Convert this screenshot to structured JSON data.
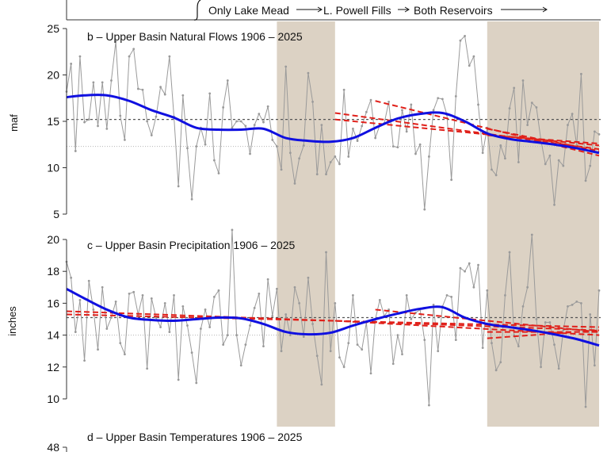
{
  "colors": {
    "shade": "#dcd2c4",
    "obs": "#9a9a9a",
    "smooth": "#1010e0",
    "trend": "#e0201a",
    "mean_line": "#555555",
    "ref_line": "#b5b5b5"
  },
  "header": {
    "labels": [
      "Only Lake Mead",
      "L. Powell Fills",
      "Both Reservoirs"
    ]
  },
  "chart_data": [
    {
      "id": "flows",
      "type": "line",
      "title": "b – Upper Basin Natural Flows 1906 – 2025",
      "ylabel": "maf",
      "xlim": [
        1906,
        2025
      ],
      "ylim": [
        5,
        25
      ],
      "yticks": [
        5,
        10,
        15,
        20,
        25
      ],
      "shaded_periods": [
        [
          1953,
          1966
        ],
        [
          2000,
          2025
        ]
      ],
      "mean_line": 15.2,
      "ref_line": 12.3,
      "series": [
        {
          "kind": "observed",
          "x_start": 1906,
          "values": [
            18.2,
            21.2,
            11.8,
            22.0,
            14.9,
            15.2,
            19.2,
            14.5,
            19.2,
            14.2,
            19.4,
            23.6,
            15.6,
            13.0,
            22.0,
            22.8,
            18.5,
            18.4,
            15.0,
            13.5,
            15.5,
            18.7,
            17.9,
            22.0,
            15.5,
            8.0,
            17.8,
            12.1,
            6.6,
            12.3,
            14.3,
            12.5,
            18.0,
            10.8,
            9.4,
            16.5,
            19.4,
            14.3,
            15.0,
            15.0,
            14.5,
            11.5,
            14.6,
            15.8,
            14.9,
            16.6,
            13.0,
            12.3,
            9.8,
            20.9,
            11.6,
            8.3,
            11.0,
            12.4,
            20.2,
            17.1,
            9.3,
            14.6,
            9.3,
            10.6,
            11.2,
            10.4,
            18.4,
            11.2,
            14.2,
            12.9,
            14.5,
            16.0,
            17.3,
            13.2,
            14.6,
            14.8,
            17.1,
            12.3,
            12.2,
            16.2,
            13.9,
            16.8,
            11.5,
            12.5,
            5.5,
            11.2,
            16.2,
            17.5,
            17.4,
            15.7,
            8.7,
            17.7,
            23.7,
            24.2,
            21.0,
            22.0,
            16.8,
            11.6,
            14.3,
            9.8,
            9.2,
            12.4,
            11.0,
            16.4,
            18.6,
            10.6,
            19.4,
            14.6,
            17.0,
            16.5,
            13.0,
            10.4,
            11.3,
            6.0,
            10.8,
            10.2,
            14.6,
            15.8,
            12.4,
            20.1,
            8.6,
            10.2,
            13.9,
            13.6
          ]
        },
        {
          "kind": "smooth",
          "x": [
            1906,
            1910,
            1915,
            1920,
            1925,
            1930,
            1935,
            1940,
            1945,
            1950,
            1955,
            1960,
            1965,
            1970,
            1975,
            1980,
            1985,
            1990,
            1995,
            2000,
            2005,
            2010,
            2015,
            2020,
            2025
          ],
          "values": [
            17.6,
            17.8,
            17.8,
            17.2,
            16.2,
            15.4,
            14.3,
            14.1,
            14.1,
            14.2,
            13.2,
            12.9,
            12.8,
            13.2,
            14.3,
            15.3,
            15.8,
            15.9,
            15.0,
            13.7,
            13.1,
            12.8,
            12.5,
            12.1,
            11.6
          ]
        },
        {
          "kind": "trend",
          "segments": [
            [
              [
                1966,
                15.9
              ],
              [
                2025,
                12.0
              ]
            ],
            [
              [
                1966,
                15.2
              ],
              [
                2025,
                12.4
              ]
            ],
            [
              [
                1975,
                17.2
              ],
              [
                2025,
                11.3
              ]
            ],
            [
              [
                2000,
                13.5
              ],
              [
                2025,
                12.6
              ]
            ],
            [
              [
                2000,
                14.2
              ],
              [
                2025,
                11.8
              ]
            ]
          ]
        }
      ]
    },
    {
      "id": "precip",
      "type": "line",
      "title": "c – Upper Basin Precipitation 1906 – 2025",
      "ylabel": "inches",
      "xlim": [
        1906,
        2025
      ],
      "ylim": [
        10,
        20
      ],
      "yticks": [
        10,
        12,
        14,
        16,
        18,
        20
      ],
      "shaded_periods": [
        [
          1953,
          1966
        ],
        [
          2000,
          2025
        ]
      ],
      "mean_line": 15.1,
      "ref_line": 14.0,
      "series": [
        {
          "kind": "observed",
          "x_start": 1906,
          "values": [
            18.6,
            17.6,
            14.2,
            16.2,
            12.4,
            17.4,
            15.6,
            13.1,
            17.0,
            14.4,
            15.1,
            16.1,
            13.5,
            12.8,
            16.6,
            16.7,
            15.3,
            16.5,
            11.9,
            16.3,
            15.1,
            14.5,
            16.0,
            14.2,
            16.5,
            11.2,
            15.8,
            14.6,
            12.9,
            11.0,
            14.4,
            15.6,
            14.5,
            16.4,
            16.8,
            13.4,
            14.0,
            20.6,
            14.0,
            12.1,
            13.4,
            14.6,
            15.7,
            16.6,
            13.3,
            17.5,
            15.2,
            16.9,
            13.0,
            15.3,
            14.0,
            17.0,
            16.0,
            13.9,
            17.6,
            14.7,
            12.7,
            10.9,
            19.2,
            13.0,
            16.0,
            12.6,
            12.0,
            13.5,
            16.5,
            13.4,
            13.1,
            14.8,
            11.6,
            15.0,
            16.2,
            15.2,
            15.6,
            12.2,
            14.0,
            12.8,
            16.5,
            15.0,
            15.4,
            15.6,
            13.7,
            9.6,
            15.9,
            13.0,
            15.8,
            16.5,
            16.4,
            13.7,
            18.2,
            18.0,
            18.5,
            17.0,
            18.4,
            13.2,
            16.8,
            13.5,
            11.8,
            12.3,
            16.5,
            19.2,
            14.0,
            13.3,
            15.8,
            17.0,
            20.3,
            15.0,
            12.0,
            14.8,
            14.8,
            13.4,
            11.9,
            14.3,
            15.8,
            15.9,
            16.1,
            16.0,
            9.5,
            15.3,
            12.1,
            16.8
          ]
        },
        {
          "kind": "smooth",
          "x": [
            1906,
            1910,
            1915,
            1920,
            1925,
            1930,
            1935,
            1940,
            1945,
            1950,
            1955,
            1960,
            1965,
            1970,
            1975,
            1980,
            1985,
            1990,
            1995,
            2000,
            2005,
            2010,
            2015,
            2020,
            2025
          ],
          "values": [
            16.9,
            16.3,
            15.6,
            15.1,
            14.95,
            14.9,
            15.0,
            15.1,
            15.05,
            14.7,
            14.2,
            14.05,
            14.15,
            14.6,
            15.0,
            15.35,
            15.65,
            15.75,
            15.1,
            14.7,
            14.5,
            14.3,
            14.05,
            13.75,
            13.35
          ]
        },
        {
          "kind": "trend",
          "segments": [
            [
              [
                1906,
                15.5
              ],
              [
                2025,
                14.3
              ]
            ],
            [
              [
                1906,
                15.3
              ],
              [
                2025,
                14.5
              ]
            ],
            [
              [
                1966,
                14.9
              ],
              [
                2025,
                14.0
              ]
            ],
            [
              [
                1975,
                15.6
              ],
              [
                2025,
                14.2
              ]
            ],
            [
              [
                2000,
                14.2
              ],
              [
                2025,
                14.2
              ]
            ],
            [
              [
                2000,
                13.8
              ],
              [
                2025,
                14.3
              ]
            ]
          ]
        }
      ]
    },
    {
      "id": "temps",
      "type": "line",
      "title": "d – Upper Basin Temperatures 1906 – 2025",
      "ylabel": "",
      "xlim": [
        1906,
        2025
      ],
      "yticks": [
        48
      ]
    }
  ]
}
